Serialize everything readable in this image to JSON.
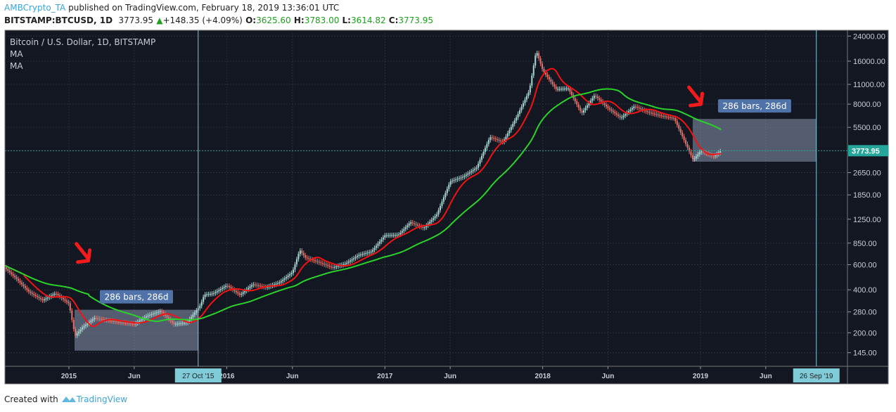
{
  "header": {
    "author": "AMBCrypto_TA",
    "published": "published on TradingView.com, February 18, 2019 13:36:01 UTC",
    "symbol": "BITSTAMP:BTCUSD, 1D",
    "last": "3773.95",
    "change": "+148.35 (+4.09%)",
    "o_label": "O:",
    "o": "3625.60",
    "h_label": "H:",
    "h": "3783.00",
    "l_label": "L:",
    "l": "3614.82",
    "c_label": "C:",
    "c": "3773.95"
  },
  "legend": {
    "title": "Bitcoin / U.S. Dollar, 1D, BITSTAMP",
    "ma1": "MA",
    "ma2": "MA"
  },
  "footer": {
    "created": "Created with",
    "brand": "TradingView"
  },
  "colors": {
    "bg": "#131722",
    "up": "#a9d6d0",
    "down": "#e0766e",
    "ma_fast": "#f21212",
    "ma_slow": "#2ad22a",
    "price_tag": "#26a69a",
    "marker": "#7fcbd8",
    "box": "#8a98b0",
    "label": "#4f72a8",
    "arrow": "#f21a1a"
  },
  "chart_data": {
    "type": "candlestick",
    "title": "Bitcoin / U.S. Dollar, 1D, BITSTAMP",
    "y_scale": "log",
    "y_ticks": [
      24000,
      16000,
      11000,
      8000,
      5500,
      2650,
      1850,
      1250,
      850,
      600,
      400,
      280,
      200,
      145
    ],
    "y_tick_labels": [
      "24000.00",
      "16000.00",
      "11000.00",
      "8000.00",
      "5500.00",
      "2650.00",
      "1850.00",
      "1250.00",
      "850.00",
      "600.00",
      "400.00",
      "280.00",
      "200.00",
      "145.00"
    ],
    "x_ticks": [
      {
        "date": "2015-01-01",
        "label": "2015"
      },
      {
        "date": "2015-06-01",
        "label": "Jun"
      },
      {
        "date": "2016-01-01",
        "label": "2016"
      },
      {
        "date": "2016-06-01",
        "label": "Jun"
      },
      {
        "date": "2017-01-01",
        "label": "2017"
      },
      {
        "date": "2017-06-01",
        "label": "Jun"
      },
      {
        "date": "2018-01-01",
        "label": "2018"
      },
      {
        "date": "2018-06-01",
        "label": "Jun"
      },
      {
        "date": "2019-01-01",
        "label": "2019"
      },
      {
        "date": "2019-06-01",
        "label": "Jun"
      }
    ],
    "current_price": 3773.95,
    "current_price_label": "3773.95",
    "closes": [
      [
        "2014-08-01",
        590
      ],
      [
        "2014-09-01",
        480
      ],
      [
        "2014-10-01",
        386
      ],
      [
        "2014-11-01",
        338
      ],
      [
        "2014-12-01",
        378
      ],
      [
        "2015-01-01",
        320
      ],
      [
        "2015-01-15",
        190
      ],
      [
        "2015-02-01",
        218
      ],
      [
        "2015-03-01",
        254
      ],
      [
        "2015-04-01",
        244
      ],
      [
        "2015-05-01",
        236
      ],
      [
        "2015-06-01",
        230
      ],
      [
        "2015-07-01",
        263
      ],
      [
        "2015-08-01",
        284
      ],
      [
        "2015-09-01",
        230
      ],
      [
        "2015-10-01",
        236
      ],
      [
        "2015-11-01",
        311
      ],
      [
        "2015-11-10",
        370
      ],
      [
        "2015-12-01",
        377
      ],
      [
        "2016-01-01",
        430
      ],
      [
        "2016-02-01",
        368
      ],
      [
        "2016-03-01",
        437
      ],
      [
        "2016-04-01",
        416
      ],
      [
        "2016-05-01",
        448
      ],
      [
        "2016-06-01",
        531
      ],
      [
        "2016-06-18",
        760
      ],
      [
        "2016-07-01",
        673
      ],
      [
        "2016-08-01",
        624
      ],
      [
        "2016-09-01",
        573
      ],
      [
        "2016-10-01",
        608
      ],
      [
        "2016-11-01",
        700
      ],
      [
        "2016-12-01",
        742
      ],
      [
        "2017-01-01",
        963
      ],
      [
        "2017-02-01",
        970
      ],
      [
        "2017-03-01",
        1190
      ],
      [
        "2017-04-01",
        1080
      ],
      [
        "2017-05-01",
        1350
      ],
      [
        "2017-06-01",
        2300
      ],
      [
        "2017-07-01",
        2480
      ],
      [
        "2017-08-01",
        2870
      ],
      [
        "2017-09-01",
        4700
      ],
      [
        "2017-10-01",
        4340
      ],
      [
        "2017-11-01",
        6450
      ],
      [
        "2017-12-01",
        9950
      ],
      [
        "2017-12-17",
        19000
      ],
      [
        "2018-01-01",
        13800
      ],
      [
        "2018-02-01",
        10200
      ],
      [
        "2018-03-01",
        10300
      ],
      [
        "2018-04-01",
        6900
      ],
      [
        "2018-05-01",
        9240
      ],
      [
        "2018-06-01",
        7500
      ],
      [
        "2018-07-01",
        6400
      ],
      [
        "2018-08-01",
        7730
      ],
      [
        "2018-09-01",
        7030
      ],
      [
        "2018-10-01",
        6630
      ],
      [
        "2018-11-01",
        6370
      ],
      [
        "2018-12-01",
        4020
      ],
      [
        "2018-12-15",
        3250
      ],
      [
        "2019-01-01",
        3740
      ],
      [
        "2019-02-01",
        3440
      ],
      [
        "2019-02-18",
        3773.95
      ]
    ],
    "series": [
      {
        "name": "MA",
        "period": 50
      },
      {
        "name": "MA",
        "period": 200
      }
    ],
    "annotations": [
      {
        "type": "date-range",
        "from": "2015-01-14",
        "to": "2015-10-27",
        "price_low": 150,
        "price_high": 290,
        "label": "286 bars, 286d"
      },
      {
        "type": "date-range",
        "from": "2018-12-14",
        "to": "2019-09-26",
        "price_low": 3160,
        "price_high": 6300,
        "label": "286 bars, 286d"
      }
    ],
    "arrows": [
      {
        "date": "2015-02-10",
        "price": 640
      },
      {
        "date": "2018-12-28",
        "price": 8000
      }
    ],
    "markers": [
      {
        "date": "2015-10-27",
        "label": "27 Oct '15"
      },
      {
        "date": "2019-09-26",
        "label": "26 Sep '19"
      }
    ]
  }
}
